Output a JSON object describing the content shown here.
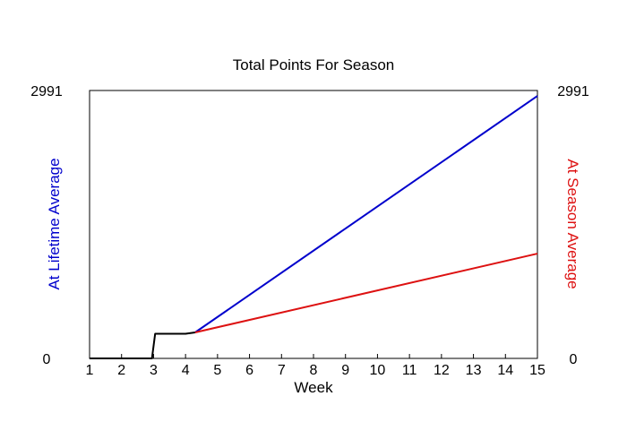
{
  "chart_data": {
    "type": "line",
    "title": "Total Points For Season",
    "xlabel": "Week",
    "ylabel_left": "At Lifetime Average",
    "ylabel_right": "At Season Average",
    "xlim": [
      1,
      15
    ],
    "ylim": [
      0,
      2991
    ],
    "x_ticks": [
      "1",
      "2",
      "3",
      "4",
      "5",
      "6",
      "7",
      "8",
      "9",
      "10",
      "11",
      "12",
      "13",
      "14",
      "15"
    ],
    "y_tick_labels_left": [
      "0",
      "2991"
    ],
    "y_tick_labels_right": [
      "0",
      "2991"
    ],
    "colors": {
      "actual": "#000000",
      "lifetime": "#0000cc",
      "season": "#dd1111"
    },
    "series": [
      {
        "key": "actual",
        "x": [
          1,
          2,
          2.95,
          3.05,
          4,
          4.3
        ],
        "y": [
          0,
          0,
          0,
          275,
          275,
          290
        ]
      },
      {
        "key": "lifetime",
        "x": [
          4.3,
          15
        ],
        "y": [
          290,
          2930
        ]
      },
      {
        "key": "season",
        "x": [
          4.3,
          15
        ],
        "y": [
          290,
          1170
        ]
      }
    ]
  }
}
